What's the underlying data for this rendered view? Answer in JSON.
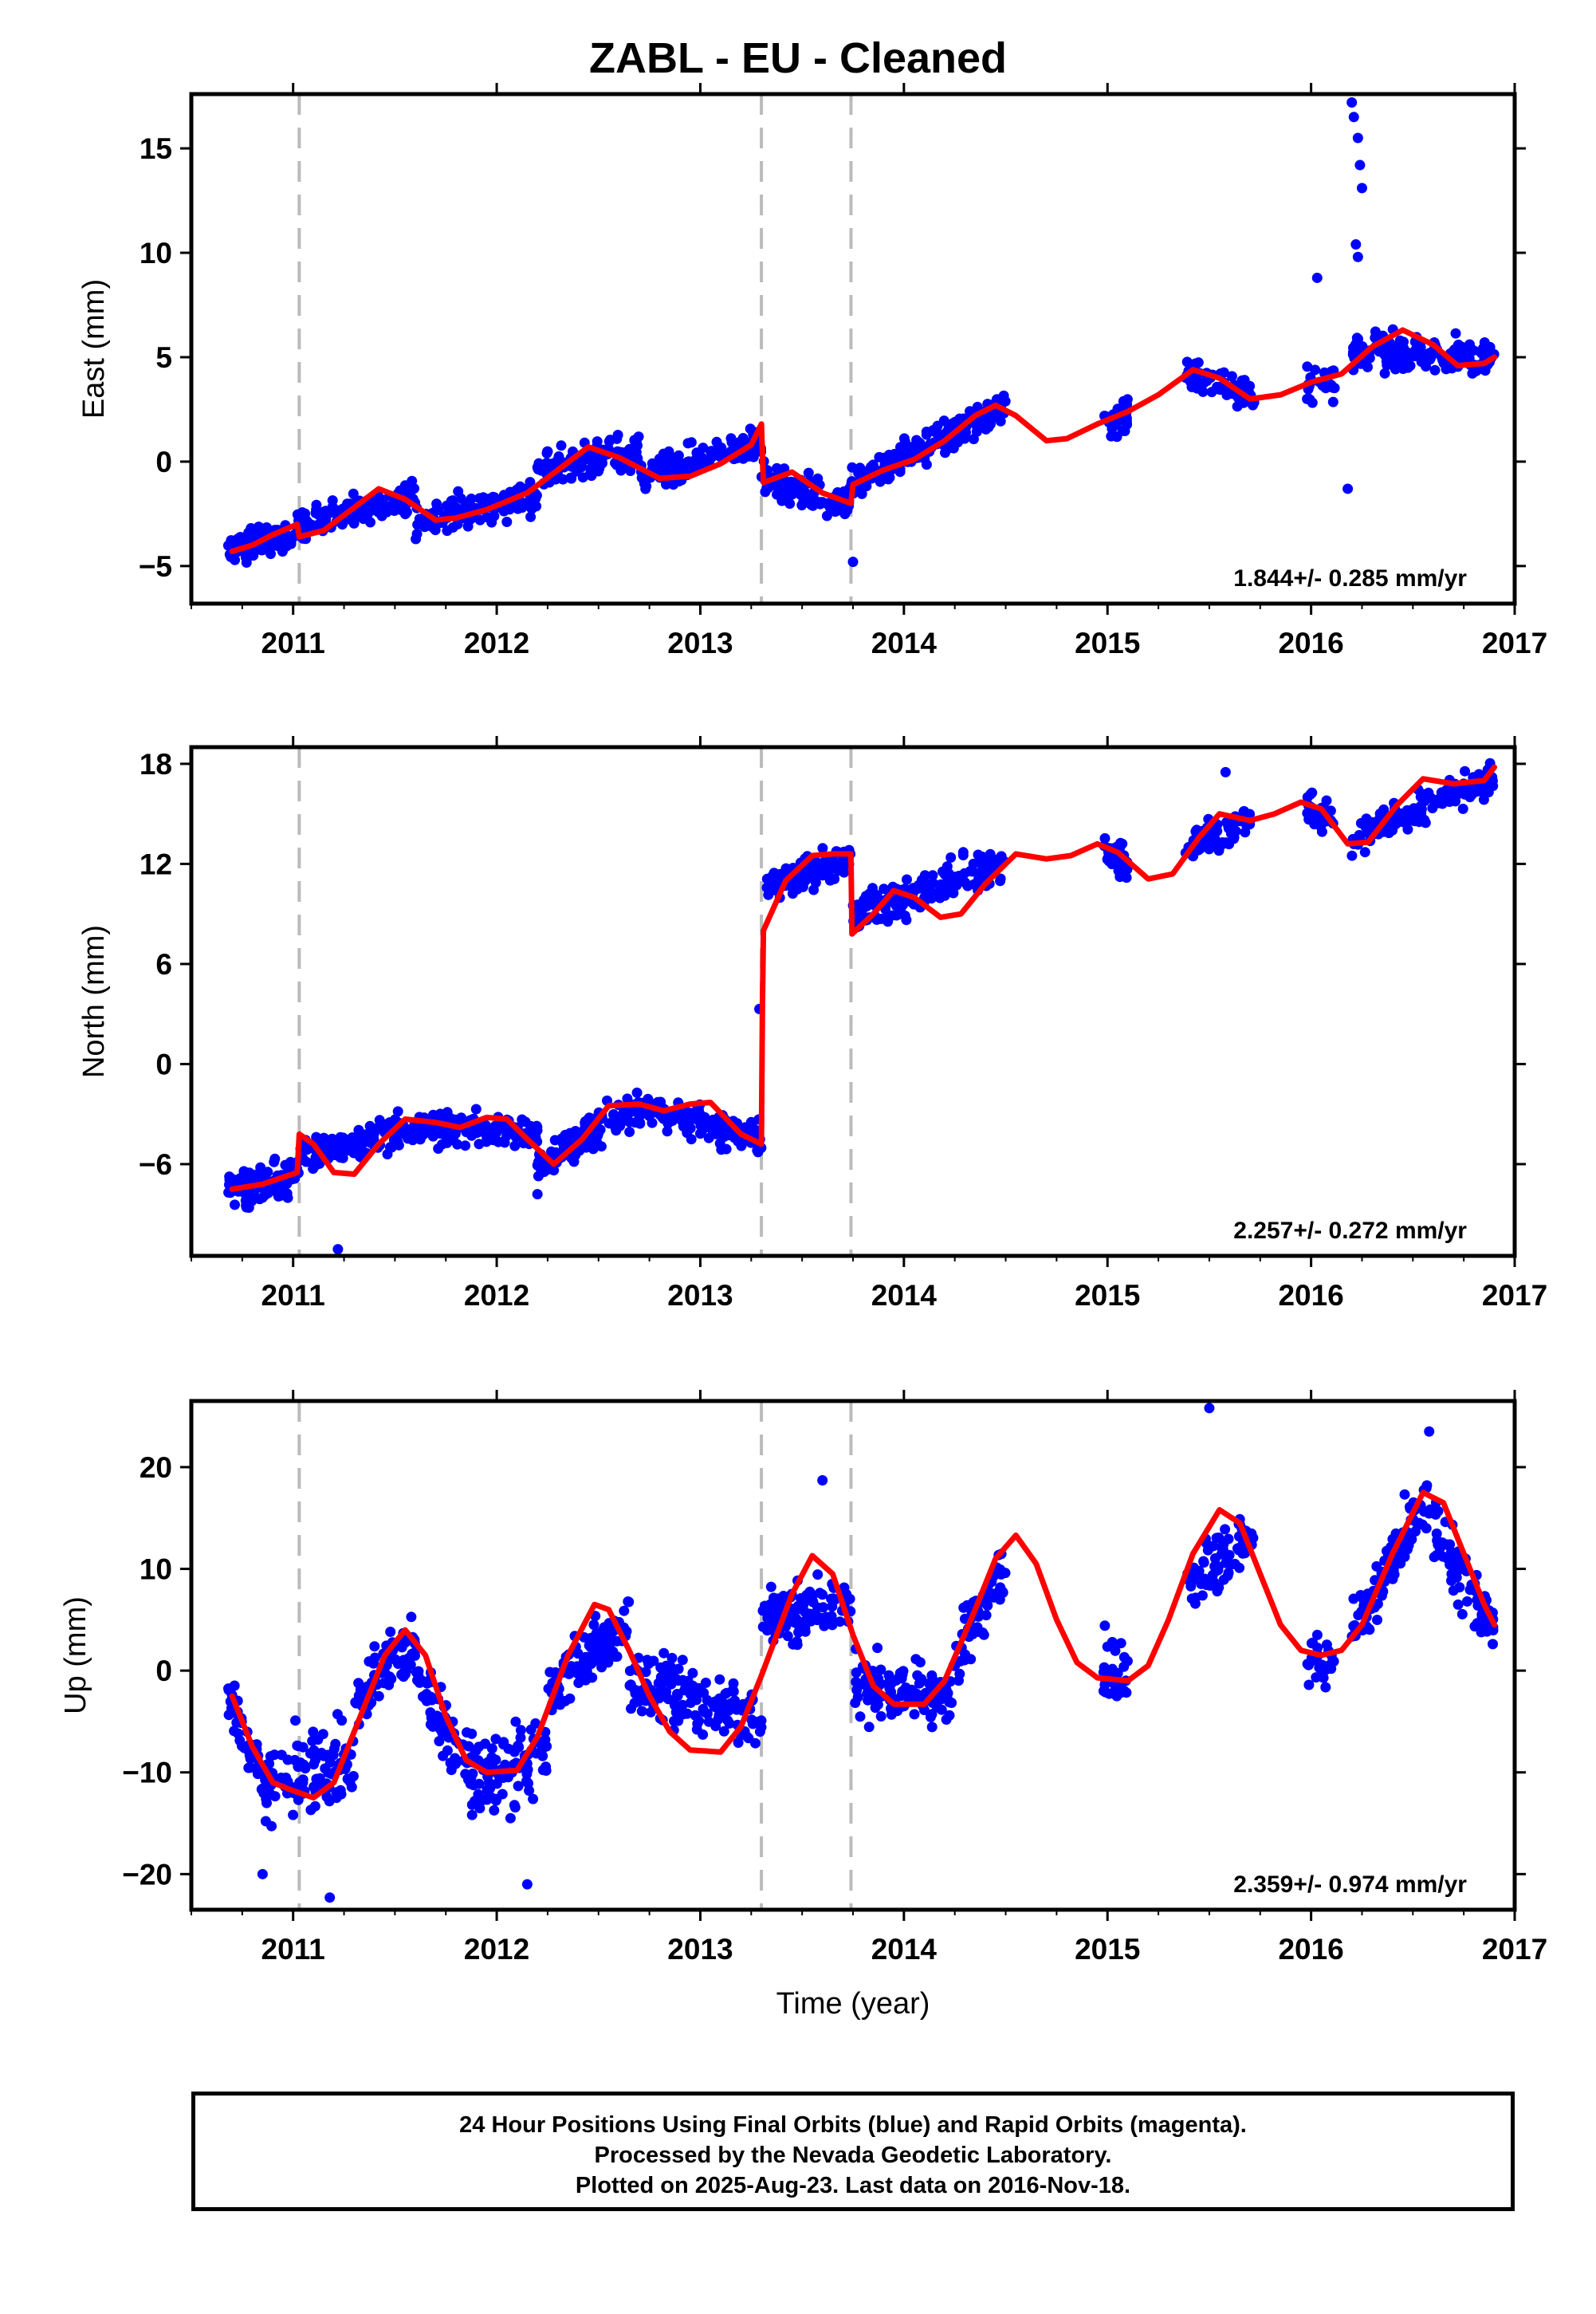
{
  "title": "ZABL  - EU - Cleaned",
  "colors": {
    "observations": "#0000ff",
    "model": "#ff0000",
    "offsets": "#bbbbbb",
    "frame": "#000000"
  },
  "footer": {
    "line1": "24 Hour Positions Using Final Orbits (blue) and Rapid Orbits (magenta).",
    "line2": "Processed by the Nevada Geodetic Laboratory.",
    "line3": "Plotted on 2025-Aug-23. Last data on 2016-Nov-18."
  },
  "chart_data": [
    {
      "type": "scatter",
      "ylabel": "East (mm)",
      "xlabel": "",
      "xlim": [
        2010.5,
        2017.0
      ],
      "ylim": [
        -6.8,
        17.6
      ],
      "xticks": [
        2011,
        2012,
        2013,
        2014,
        2015,
        2016,
        2017
      ],
      "yticks": [
        -5,
        0,
        5,
        10,
        15
      ],
      "offset_lines_x": [
        2011.03,
        2013.3,
        2013.74
      ],
      "data_gaps": [
        [
          2014.52,
          2014.98
        ],
        [
          2015.1,
          2015.38
        ],
        [
          2015.72,
          2015.98
        ]
      ],
      "velocity_label": "1.844+/- 0.285 mm/yr",
      "grid": false,
      "model_points": [
        [
          2010.7,
          -4.3
        ],
        [
          2010.8,
          -4.0
        ],
        [
          2010.9,
          -3.5
        ],
        [
          2011.02,
          -3.0
        ],
        [
          2011.03,
          -3.6
        ],
        [
          2011.15,
          -3.3
        ],
        [
          2011.3,
          -2.2
        ],
        [
          2011.42,
          -1.3
        ],
        [
          2011.55,
          -1.8
        ],
        [
          2011.7,
          -2.8
        ],
        [
          2011.8,
          -2.7
        ],
        [
          2011.95,
          -2.3
        ],
        [
          2012.15,
          -1.5
        ],
        [
          2012.3,
          -0.4
        ],
        [
          2012.45,
          0.7
        ],
        [
          2012.6,
          0.2
        ],
        [
          2012.8,
          -0.8
        ],
        [
          2012.95,
          -0.7
        ],
        [
          2013.1,
          -0.1
        ],
        [
          2013.25,
          0.8
        ],
        [
          2013.3,
          1.8
        ],
        [
          2013.31,
          -1.0
        ],
        [
          2013.45,
          -0.5
        ],
        [
          2013.6,
          -1.5
        ],
        [
          2013.74,
          -2.0
        ],
        [
          2013.75,
          -1.1
        ],
        [
          2013.9,
          -0.4
        ],
        [
          2014.05,
          0.1
        ],
        [
          2014.2,
          1.0
        ],
        [
          2014.35,
          2.2
        ],
        [
          2014.45,
          2.7
        ],
        [
          2014.55,
          2.2
        ],
        [
          2014.7,
          1.0
        ],
        [
          2014.8,
          1.1
        ],
        [
          2014.95,
          1.8
        ],
        [
          2015.1,
          2.4
        ],
        [
          2015.25,
          3.2
        ],
        [
          2015.42,
          4.4
        ],
        [
          2015.55,
          4.0
        ],
        [
          2015.7,
          3.0
        ],
        [
          2015.85,
          3.2
        ],
        [
          2016.0,
          3.8
        ],
        [
          2016.15,
          4.2
        ],
        [
          2016.3,
          5.5
        ],
        [
          2016.45,
          6.3
        ],
        [
          2016.6,
          5.6
        ],
        [
          2016.72,
          4.6
        ],
        [
          2016.85,
          4.7
        ],
        [
          2016.9,
          5.0
        ]
      ],
      "observation_bands": [
        {
          "x": [
            2010.68,
            2011.03
          ],
          "y_start": -4.3,
          "y_end": -3.3,
          "spread": 0.9,
          "count": 110
        },
        {
          "x": [
            2011.03,
            2011.6
          ],
          "y_start": -3.0,
          "y_end": -1.6,
          "spread": 0.9,
          "count": 140
        },
        {
          "x": [
            2011.6,
            2012.2
          ],
          "y_start": -2.9,
          "y_end": -1.6,
          "spread": 1.0,
          "count": 140
        },
        {
          "x": [
            2012.2,
            2012.7
          ],
          "y_start": -0.5,
          "y_end": 0.5,
          "spread": 1.1,
          "count": 130
        },
        {
          "x": [
            2012.7,
            2013.3
          ],
          "y_start": -0.8,
          "y_end": 1.0,
          "spread": 1.0,
          "count": 140
        },
        {
          "x": [
            2013.3,
            2013.74
          ],
          "y_start": -0.9,
          "y_end": -2.0,
          "spread": 1.0,
          "count": 100
        },
        {
          "x": [
            2013.74,
            2014.5
          ],
          "y_start": -1.0,
          "y_end": 2.6,
          "spread": 1.0,
          "count": 180
        },
        {
          "x": [
            2014.98,
            2015.1
          ],
          "y_start": 1.9,
          "y_end": 2.3,
          "spread": 1.2,
          "count": 35
        },
        {
          "x": [
            2015.38,
            2015.72
          ],
          "y_start": 4.2,
          "y_end": 3.2,
          "spread": 1.0,
          "count": 70
        },
        {
          "x": [
            2015.98,
            2016.12
          ],
          "y_start": 3.5,
          "y_end": 3.8,
          "spread": 1.2,
          "count": 30
        },
        {
          "x": [
            2016.2,
            2016.9
          ],
          "y_start": 5.3,
          "y_end": 5.0,
          "spread": 1.0,
          "count": 170
        }
      ],
      "outliers": [
        [
          2016.2,
          17.2
        ],
        [
          2016.21,
          16.5
        ],
        [
          2016.23,
          15.5
        ],
        [
          2016.24,
          14.2
        ],
        [
          2016.25,
          13.1
        ],
        [
          2016.22,
          10.4
        ],
        [
          2016.23,
          9.8
        ],
        [
          2016.03,
          8.8
        ],
        [
          2016.18,
          -1.3
        ],
        [
          2013.75,
          -4.8
        ]
      ]
    },
    {
      "type": "scatter",
      "ylabel": "North (mm)",
      "xlabel": "",
      "xlim": [
        2010.5,
        2017.0
      ],
      "ylim": [
        -11.5,
        19.0
      ],
      "xticks": [
        2011,
        2012,
        2013,
        2014,
        2015,
        2016,
        2017
      ],
      "yticks": [
        -6,
        0,
        6,
        12,
        18
      ],
      "offset_lines_x": [
        2011.03,
        2013.3,
        2013.74
      ],
      "data_gaps": [
        [
          2014.52,
          2014.98
        ],
        [
          2015.1,
          2015.38
        ],
        [
          2015.72,
          2015.98
        ]
      ],
      "velocity_label": "2.257+/- 0.272 mm/yr",
      "grid": false,
      "model_points": [
        [
          2010.7,
          -7.5
        ],
        [
          2010.85,
          -7.2
        ],
        [
          2011.02,
          -6.5
        ],
        [
          2011.03,
          -4.2
        ],
        [
          2011.1,
          -4.8
        ],
        [
          2011.2,
          -6.5
        ],
        [
          2011.3,
          -6.6
        ],
        [
          2011.42,
          -4.8
        ],
        [
          2011.55,
          -3.3
        ],
        [
          2011.7,
          -3.5
        ],
        [
          2011.82,
          -3.8
        ],
        [
          2011.95,
          -3.2
        ],
        [
          2012.05,
          -3.3
        ],
        [
          2012.15,
          -4.5
        ],
        [
          2012.28,
          -6.0
        ],
        [
          2012.42,
          -4.5
        ],
        [
          2012.55,
          -2.5
        ],
        [
          2012.7,
          -2.4
        ],
        [
          2012.82,
          -2.8
        ],
        [
          2012.95,
          -2.4
        ],
        [
          2013.05,
          -2.3
        ],
        [
          2013.2,
          -4.2
        ],
        [
          2013.3,
          -4.8
        ],
        [
          2013.305,
          3.5
        ],
        [
          2013.31,
          8.0
        ],
        [
          2013.42,
          11.0
        ],
        [
          2013.55,
          12.5
        ],
        [
          2013.65,
          12.6
        ],
        [
          2013.74,
          12.6
        ],
        [
          2013.745,
          7.8
        ],
        [
          2013.85,
          9.0
        ],
        [
          2013.95,
          10.4
        ],
        [
          2014.05,
          10.0
        ],
        [
          2014.18,
          8.8
        ],
        [
          2014.28,
          9.0
        ],
        [
          2014.4,
          10.8
        ],
        [
          2014.55,
          12.6
        ],
        [
          2014.7,
          12.3
        ],
        [
          2014.82,
          12.5
        ],
        [
          2014.95,
          13.2
        ],
        [
          2015.05,
          12.7
        ],
        [
          2015.2,
          11.1
        ],
        [
          2015.32,
          11.4
        ],
        [
          2015.45,
          13.6
        ],
        [
          2015.55,
          15.0
        ],
        [
          2015.7,
          14.6
        ],
        [
          2015.82,
          15.0
        ],
        [
          2015.95,
          15.7
        ],
        [
          2016.05,
          15.3
        ],
        [
          2016.18,
          13.2
        ],
        [
          2016.28,
          13.3
        ],
        [
          2016.42,
          15.5
        ],
        [
          2016.55,
          17.1
        ],
        [
          2016.7,
          16.8
        ],
        [
          2016.85,
          17.0
        ],
        [
          2016.9,
          17.8
        ]
      ],
      "observation_bands": [
        {
          "x": [
            2010.68,
            2011.03
          ],
          "y_start": -7.5,
          "y_end": -6.7,
          "spread": 1.4,
          "count": 110
        },
        {
          "x": [
            2011.03,
            2011.6
          ],
          "y_start": -5.6,
          "y_end": -3.8,
          "spread": 1.3,
          "count": 140
        },
        {
          "x": [
            2011.6,
            2012.2
          ],
          "y_start": -3.8,
          "y_end": -4.2,
          "spread": 1.2,
          "count": 140
        },
        {
          "x": [
            2012.2,
            2012.7
          ],
          "y_start": -6.0,
          "y_end": -2.5,
          "spread": 1.3,
          "count": 130
        },
        {
          "x": [
            2012.7,
            2013.3
          ],
          "y_start": -2.6,
          "y_end": -4.5,
          "spread": 1.3,
          "count": 140
        },
        {
          "x": [
            2013.31,
            2013.74
          ],
          "y_start": 10.5,
          "y_end": 12.5,
          "spread": 1.4,
          "count": 100
        },
        {
          "x": [
            2013.75,
            2014.5
          ],
          "y_start": 9.0,
          "y_end": 12.0,
          "spread": 1.4,
          "count": 180
        },
        {
          "x": [
            2014.98,
            2015.1
          ],
          "y_start": 12.8,
          "y_end": 12.0,
          "spread": 1.3,
          "count": 35
        },
        {
          "x": [
            2015.38,
            2015.72
          ],
          "y_start": 13.0,
          "y_end": 14.8,
          "spread": 1.3,
          "count": 70
        },
        {
          "x": [
            2015.98,
            2016.12
          ],
          "y_start": 15.3,
          "y_end": 14.5,
          "spread": 1.3,
          "count": 30
        },
        {
          "x": [
            2016.2,
            2016.9
          ],
          "y_start": 13.5,
          "y_end": 17.2,
          "spread": 1.3,
          "count": 170
        }
      ],
      "outliers": [
        [
          2011.22,
          -11.1
        ],
        [
          2013.29,
          3.3
        ],
        [
          2012.2,
          -7.8
        ],
        [
          2015.58,
          17.5
        ]
      ]
    },
    {
      "type": "scatter",
      "ylabel": "Up (mm)",
      "xlabel": "Time (year)",
      "xlim": [
        2010.5,
        2017.0
      ],
      "ylim": [
        -23.5,
        26.5
      ],
      "xticks": [
        2011,
        2012,
        2013,
        2014,
        2015,
        2016,
        2017
      ],
      "yticks": [
        -20,
        -10,
        0,
        10,
        20
      ],
      "offset_lines_x": [
        2011.03,
        2013.3,
        2013.74
      ],
      "data_gaps": [
        [
          2014.52,
          2014.98
        ],
        [
          2015.1,
          2015.38
        ],
        [
          2015.72,
          2015.98
        ]
      ],
      "velocity_label": "2.359+/- 0.974 mm/yr",
      "grid": false,
      "model_points": [
        [
          2010.7,
          -2.5
        ],
        [
          2010.8,
          -7.5
        ],
        [
          2010.9,
          -11.0
        ],
        [
          2011.0,
          -11.8
        ],
        [
          2011.1,
          -12.5
        ],
        [
          2011.2,
          -11.0
        ],
        [
          2011.3,
          -6.0
        ],
        [
          2011.45,
          1.5
        ],
        [
          2011.55,
          4.0
        ],
        [
          2011.65,
          1.5
        ],
        [
          2011.75,
          -4.5
        ],
        [
          2011.85,
          -8.8
        ],
        [
          2011.95,
          -10.0
        ],
        [
          2012.1,
          -9.8
        ],
        [
          2012.2,
          -6.5
        ],
        [
          2012.35,
          1.5
        ],
        [
          2012.48,
          6.5
        ],
        [
          2012.55,
          6.0
        ],
        [
          2012.65,
          2.0
        ],
        [
          2012.75,
          -2.5
        ],
        [
          2012.85,
          -6.0
        ],
        [
          2012.95,
          -7.8
        ],
        [
          2013.1,
          -8.0
        ],
        [
          2013.2,
          -5.5
        ],
        [
          2013.3,
          -0.5
        ],
        [
          2013.45,
          7.5
        ],
        [
          2013.55,
          11.3
        ],
        [
          2013.65,
          9.5
        ],
        [
          2013.75,
          3.5
        ],
        [
          2013.85,
          -1.5
        ],
        [
          2013.95,
          -3.3
        ],
        [
          2014.1,
          -3.3
        ],
        [
          2014.2,
          -1.0
        ],
        [
          2014.35,
          6.0
        ],
        [
          2014.45,
          11.0
        ],
        [
          2014.55,
          13.3
        ],
        [
          2014.65,
          10.5
        ],
        [
          2014.75,
          5.0
        ],
        [
          2014.85,
          0.8
        ],
        [
          2014.95,
          -0.7
        ],
        [
          2015.1,
          -1.0
        ],
        [
          2015.2,
          0.5
        ],
        [
          2015.3,
          5.0
        ],
        [
          2015.42,
          11.5
        ],
        [
          2015.55,
          15.8
        ],
        [
          2015.65,
          14.5
        ],
        [
          2015.75,
          9.5
        ],
        [
          2015.85,
          4.5
        ],
        [
          2015.95,
          2.0
        ],
        [
          2016.05,
          1.5
        ],
        [
          2016.15,
          2.0
        ],
        [
          2016.25,
          4.5
        ],
        [
          2016.4,
          11.5
        ],
        [
          2016.55,
          17.5
        ],
        [
          2016.65,
          16.5
        ],
        [
          2016.75,
          11.5
        ],
        [
          2016.85,
          6.5
        ],
        [
          2016.9,
          4.5
        ]
      ],
      "observation_bands": [
        {
          "x": [
            2010.68,
            2010.85
          ],
          "y_start": -3.0,
          "y_end": -10.0,
          "spread": 3.0,
          "count": 50
        },
        {
          "x": [
            2010.85,
            2011.3
          ],
          "y_start": -11.5,
          "y_end": -9.0,
          "spread": 5.0,
          "count": 110
        },
        {
          "x": [
            2011.3,
            2011.6
          ],
          "y_start": -3.0,
          "y_end": 3.0,
          "spread": 4.0,
          "count": 70
        },
        {
          "x": [
            2011.6,
            2011.8
          ],
          "y_start": 0.0,
          "y_end": -7.0,
          "spread": 4.0,
          "count": 50
        },
        {
          "x": [
            2011.8,
            2012.25
          ],
          "y_start": -10.0,
          "y_end": -9.0,
          "spread": 5.0,
          "count": 110
        },
        {
          "x": [
            2012.25,
            2012.65
          ],
          "y_start": -2.0,
          "y_end": 5.0,
          "spread": 4.0,
          "count": 100
        },
        {
          "x": [
            2012.65,
            2013.3
          ],
          "y_start": -1.0,
          "y_end": -5.0,
          "spread": 4.0,
          "count": 150
        },
        {
          "x": [
            2013.3,
            2013.74
          ],
          "y_start": 5.0,
          "y_end": 7.0,
          "spread": 4.0,
          "count": 100
        },
        {
          "x": [
            2013.75,
            2014.25
          ],
          "y_start": -1.0,
          "y_end": -3.0,
          "spread": 4.0,
          "count": 120
        },
        {
          "x": [
            2014.25,
            2014.5
          ],
          "y_start": 2.0,
          "y_end": 10.0,
          "spread": 4.0,
          "count": 60
        },
        {
          "x": [
            2014.98,
            2015.1
          ],
          "y_start": 0.0,
          "y_end": -1.0,
          "spread": 4.0,
          "count": 35
        },
        {
          "x": [
            2015.38,
            2015.72
          ],
          "y_start": 9.0,
          "y_end": 13.0,
          "spread": 4.0,
          "count": 70
        },
        {
          "x": [
            2015.98,
            2016.12
          ],
          "y_start": 1.5,
          "y_end": 0.5,
          "spread": 3.0,
          "count": 30
        },
        {
          "x": [
            2016.2,
            2016.55
          ],
          "y_start": 3.0,
          "y_end": 16.0,
          "spread": 4.0,
          "count": 90
        },
        {
          "x": [
            2016.55,
            2016.9
          ],
          "y_start": 16.0,
          "y_end": 4.0,
          "spread": 4.0,
          "count": 80
        }
      ],
      "outliers": [
        [
          2015.5,
          25.8
        ],
        [
          2016.58,
          23.5
        ],
        [
          2012.15,
          -21.0
        ],
        [
          2011.18,
          -22.3
        ],
        [
          2013.6,
          18.7
        ],
        [
          2010.85,
          -20.0
        ]
      ]
    }
  ]
}
